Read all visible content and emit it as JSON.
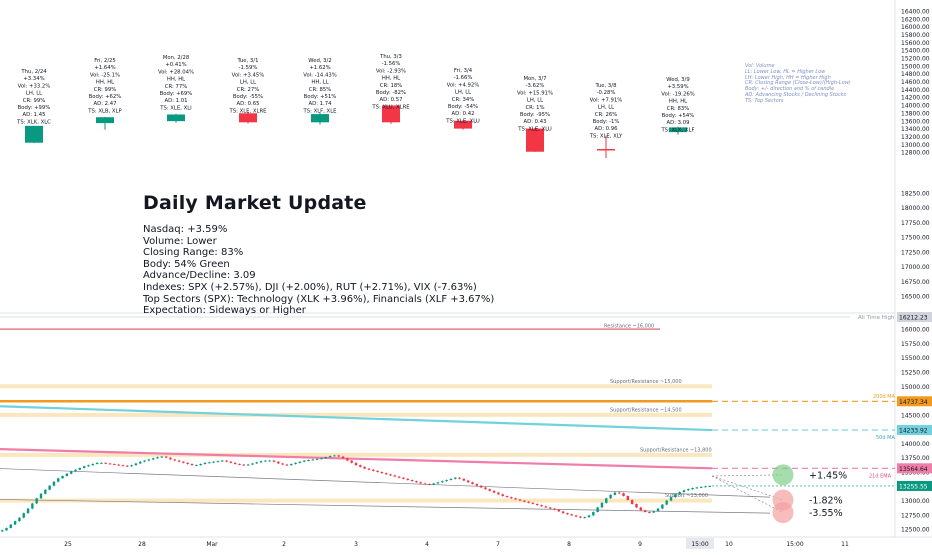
{
  "daily_cards": [
    {
      "date": "Thu, 2/24",
      "change": "+3.34%",
      "vol": "Vol: +33.2%",
      "ll": "LH, LL",
      "cr": "CR: 99%",
      "body": "Body: +99%",
      "ad": "AD: 1.45",
      "ts": "TS: XLK, XLC"
    },
    {
      "date": "Fri, 2/25",
      "change": "+1.64%",
      "vol": "Vol: -25.1%",
      "ll": "HH, HL",
      "cr": "CR: 99%",
      "body": "Body: +62%",
      "ad": "AD: 2.47",
      "ts": "TS: XLB, XLP"
    },
    {
      "date": "Mon, 2/28",
      "change": "+0.41%",
      "vol": "Vol: +28.04%",
      "ll": "HH, HL",
      "cr": "CR: 77%",
      "body": "Body: +69%",
      "ad": "AD: 1.01",
      "ts": "TS: XLE, XLI"
    },
    {
      "date": "Tue, 3/1",
      "change": "-1.59%",
      "vol": "Vol: +3.45%",
      "ll": "LH, LL",
      "cr": "CR: 27%",
      "body": "Body: -55%",
      "ad": "AD: 0.65",
      "ts": "TS: XLE, XLRE"
    },
    {
      "date": "Wed, 3/2",
      "change": "+1.62%",
      "vol": "Vol: -14.43%",
      "ll": "HH, LL",
      "cr": "CR: 85%",
      "body": "Body: +51%",
      "ad": "AD: 1.74",
      "ts": "TS: XLF, XLE"
    },
    {
      "date": "Thu, 3/3",
      "change": "-1.56%",
      "vol": "Vol: -2.93%",
      "ll": "HH, HL",
      "cr": "CR: 18%",
      "body": "Body: -82%",
      "ad": "AD: 0.57",
      "ts": "TS: XLU, XLRE"
    },
    {
      "date": "Fri, 3/4",
      "change": "-1.66%",
      "vol": "Vol: +4.92%",
      "ll": "LH, LL",
      "cr": "CR: 34%",
      "body": "Body: -54%",
      "ad": "AD: 0.42",
      "ts": "TS: XLE, XLU"
    },
    {
      "date": "Mon, 3/7",
      "change": "-3.62%",
      "vol": "Vol: +15.91%",
      "ll": "LH, LL",
      "cr": "CR: 1%",
      "body": "Body: -95%",
      "ad": "AD: 0.43",
      "ts": "TS: XLE, XLU"
    },
    {
      "date": "Tue, 3/8",
      "change": "-0.28%",
      "vol": "Vol: +7.91%",
      "ll": "LH, LL",
      "cr": "CR: 26%",
      "body": "Body: -1%",
      "ad": "AD: 0.96",
      "ts": "TS: XLE, XLY"
    },
    {
      "date": "Wed, 3/9",
      "change": "+3.59%",
      "vol": "Vol: -19.26%",
      "ll": "HH, HL",
      "cr": "CR: 83%",
      "body": "Body: +54%",
      "ad": "AD: 3.09",
      "ts": "TS: XLK, XLF"
    }
  ],
  "legend_lines": [
    "Vol: Volume",
    "LL: Lower Low, HL = Higher Low",
    "LH: Lower High, HH = Higher High",
    "CR: Closing Range (Close-Low)/(High-Low)",
    "Body: +/- direction and % of candle",
    "AD: Advancing Stocks / Declining Stocks",
    "TS: Top Sectors"
  ],
  "summary": {
    "title": "Daily Market Update",
    "lines": [
      "Nasdaq: +3.59%",
      "Volume: Lower",
      "Closing Range: 83%",
      "Body: 54% Green",
      "Advance/Decline: 3.09",
      "Indexes: SPX (+2.57%), DJI (+2.00%), RUT (+2.71%), VIX (-7.63%)",
      "Top Sectors (SPX): Technology (XLK +3.96%), Financials (XLF +3.67%)",
      "Expectation: Sideways or Higher"
    ]
  },
  "colors": {
    "up": "#089981",
    "down": "#f23645",
    "resistance": "#e0666e",
    "support_band": "#f5d48a",
    "ma200": "#f29a1f",
    "ma50": "#6fd2dc",
    "ema21": "#f07ca8",
    "axis_text": "#131722",
    "grid": "#e0e3eb",
    "badge_dark": "#787b86",
    "green_circle": "#7fcf8a",
    "red_circle": "#f4a0a0"
  },
  "top_axis": {
    "ticks": [
      "16400.00",
      "16200.00",
      "16000.00",
      "15800.00",
      "15600.00",
      "15400.00",
      "15200.00",
      "15000.00",
      "14800.00",
      "14600.00",
      "14400.00",
      "14200.00",
      "14000.00",
      "13800.00",
      "13600.00",
      "13400.00",
      "13200.00",
      "13000.00",
      "12800.00"
    ],
    "ymin": 12650,
    "ymax": 16450
  },
  "mid_axis": {
    "ticks": [
      "18250.00",
      "18000.00",
      "17750.00",
      "17500.00",
      "17250.00",
      "17000.00",
      "16750.00",
      "16500.00"
    ]
  },
  "bottom_axis": {
    "ticks": [
      "16000.00",
      "15750.00",
      "15500.00",
      "15250.00",
      "15000.00",
      "14750.00",
      "14500.00",
      "14250.00",
      "14000.00",
      "13750.00",
      "13500.00",
      "13250.00",
      "13000.00",
      "12750.00",
      "12500.00"
    ],
    "ymin": 12450,
    "ymax": 16300
  },
  "price_badges": [
    {
      "label": "16212.23",
      "kind": "ath"
    },
    {
      "label": "14737.34",
      "kind": "ma200"
    },
    {
      "label": "14233.92",
      "kind": "ma50"
    },
    {
      "label": "13564.64",
      "kind": "ema21"
    },
    {
      "label": "13255.55",
      "kind": "last"
    }
  ],
  "levels": [
    {
      "label": "All Time High",
      "value": 16212.23,
      "kind": "ath"
    },
    {
      "label": "Resistance ~16,000",
      "value": 16000,
      "kind": "resistance"
    },
    {
      "label": "Support/Resistance ~15,000",
      "value": 15000,
      "kind": "band"
    },
    {
      "label": "Support/Resistance ~14,500",
      "value": 14500,
      "kind": "band"
    },
    {
      "label": "Support/Resistance ~13,800",
      "value": 13800,
      "kind": "band"
    },
    {
      "label": "Support ~13,000",
      "value": 13000,
      "kind": "band"
    }
  ],
  "ma_labels": {
    "ma200": "200d MA",
    "ma50": "50d MA",
    "ema21": "21d EMA"
  },
  "projections": [
    {
      "label": "+1.45%",
      "value": 13450,
      "kind": "up"
    },
    {
      "label": "-1.82%",
      "value": 13010,
      "kind": "down"
    },
    {
      "label": "-3.55%",
      "value": 12790,
      "kind": "down"
    }
  ],
  "x_axis": {
    "ticks": [
      "25",
      "28",
      "Mar",
      "2",
      "3",
      "4",
      "7",
      "8",
      "9",
      "15:00",
      "10",
      "15:00",
      "11"
    ]
  },
  "chart_data": {
    "type": "line",
    "title": "",
    "series": [
      {
        "values": [
          12480,
          12520,
          12580,
          12640,
          12700,
          12780,
          12860,
          12950,
          13040,
          13120,
          13190,
          13260,
          13330,
          13390,
          13430,
          13470,
          13510,
          13540,
          13570,
          13600,
          13620,
          13640,
          13660,
          13660,
          13650,
          13640,
          13630,
          13620,
          13610,
          13600,
          13620,
          13650,
          13680,
          13700,
          13720,
          13740,
          13760,
          13770,
          13750,
          13720,
          13700,
          13680,
          13660,
          13640,
          13620,
          13620,
          13640,
          13660,
          13670,
          13680,
          13690,
          13700,
          13680,
          13660,
          13640,
          13630,
          13620,
          13630,
          13650,
          13670,
          13690,
          13700,
          13700,
          13680,
          13650,
          13630,
          13620,
          13640,
          13660,
          13680,
          13700,
          13710,
          13720,
          13730,
          13740,
          13760,
          13780,
          13790,
          13770,
          13740,
          13700,
          13660,
          13620,
          13590,
          13560,
          13540,
          13520,
          13500,
          13480,
          13460,
          13440,
          13420,
          13400,
          13380,
          13360,
          13340,
          13320,
          13300,
          13290,
          13280,
          13300,
          13320,
          13340,
          13360,
          13380,
          13400,
          13380,
          13350,
          13320,
          13290,
          13260,
          13230,
          13200,
          13170,
          13140,
          13110,
          13080,
          13060,
          13040,
          13020,
          13000,
          12980,
          12960,
          12940,
          12920,
          12900,
          12880,
          12860,
          12840,
          12810,
          12780,
          12760,
          12740,
          12720,
          12700,
          12710,
          12740,
          12800,
          12880,
          12960,
          13040,
          13100,
          13140,
          13130,
          13080,
          13010,
          12940,
          12880,
          12830,
          12800,
          12790,
          12810,
          12860,
          12930,
          13000,
          13060,
          13110,
          13150,
          13180,
          13200,
          13220,
          13230,
          13240,
          13250,
          13255
        ]
      }
    ],
    "candles": [
      {
        "date": "2/24",
        "open": 13040,
        "close": 13470,
        "high": 13470,
        "low": 13030
      },
      {
        "date": "2/25",
        "open": 13540,
        "close": 13690,
        "high": 13700,
        "low": 13370
      },
      {
        "date": "2/28",
        "open": 13590,
        "close": 13760,
        "high": 13780,
        "low": 13550
      },
      {
        "date": "3/1",
        "open": 13790,
        "close": 13560,
        "high": 13830,
        "low": 13530
      },
      {
        "date": "3/2",
        "open": 13560,
        "close": 13770,
        "high": 13800,
        "low": 13500
      },
      {
        "date": "3/3",
        "open": 13990,
        "close": 13560,
        "high": 13990,
        "low": 13520
      },
      {
        "date": "3/4",
        "open": 13600,
        "close": 13400,
        "high": 13610,
        "low": 13370
      },
      {
        "date": "3/7",
        "open": 13400,
        "close": 12810,
        "high": 13420,
        "low": 12810
      },
      {
        "date": "3/8",
        "open": 12880,
        "close": 12850,
        "high": 13220,
        "low": 12650
      },
      {
        "date": "3/9",
        "open": 13310,
        "close": 13430,
        "high": 13450,
        "low": 13250
      }
    ],
    "y_ranges": {
      "cards_panel": [
        12650,
        16450
      ],
      "main_panel": [
        12450,
        16300
      ]
    },
    "annotations": [
      "All Time High",
      "Resistance ~16,000",
      "Support/Resistance ~15,000",
      "Support/Resistance ~14,500",
      "Support/Resistance ~13,800",
      "Support ~13,000",
      "200d MA",
      "50d MA",
      "21d EMA",
      "+1.45%",
      "-1.82%",
      "-3.55%"
    ]
  }
}
